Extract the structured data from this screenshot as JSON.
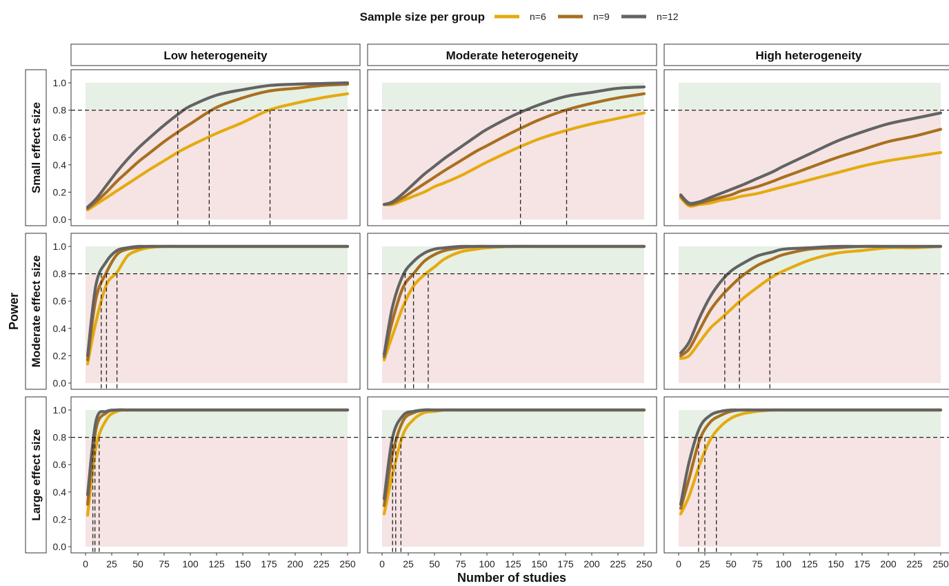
{
  "legend": {
    "title": "Sample size per group",
    "items": [
      {
        "label": "n=6",
        "color": "#E5AA10"
      },
      {
        "label": "n=9",
        "color": "#A96F1F"
      },
      {
        "label": "n=12",
        "color": "#636363"
      }
    ]
  },
  "columns": [
    "Low heterogeneity",
    "Moderate heterogeneity",
    "High heterogeneity"
  ],
  "rows": [
    "Small effect size",
    "Moderate effect size",
    "Large effect size"
  ],
  "axes": {
    "xlabel": "Number of studies",
    "ylabel": "Power",
    "xticks": [
      "0",
      "25",
      "50",
      "75",
      "100",
      "125",
      "150",
      "175",
      "200",
      "225",
      "250"
    ],
    "yticks": [
      "0.0",
      "0.2",
      "0.4",
      "0.6",
      "0.8",
      "1.0"
    ]
  },
  "colors": {
    "above_threshold_band": "#E6F0E4",
    "below_threshold_band": "#F5E4E3",
    "threshold_line": "#222222"
  },
  "chart_data": {
    "type": "line",
    "xlim": [
      0,
      250
    ],
    "ylim": [
      0,
      1
    ],
    "threshold": 0.8,
    "x": [
      2,
      10,
      20,
      30,
      40,
      50,
      60,
      75,
      90,
      100,
      125,
      150,
      175,
      200,
      225,
      250
    ],
    "panels": [
      {
        "row": "Small effect size",
        "column": "Low heterogeneity",
        "series": [
          {
            "name": "n=6",
            "crossing": 176,
            "values": [
              0.07,
              0.11,
              0.16,
              0.21,
              0.26,
              0.31,
              0.36,
              0.43,
              0.5,
              0.54,
              0.63,
              0.71,
              0.8,
              0.85,
              0.89,
              0.92
            ]
          },
          {
            "name": "n=9",
            "crossing": 118,
            "values": [
              0.08,
              0.13,
              0.2,
              0.28,
              0.35,
              0.42,
              0.48,
              0.57,
              0.65,
              0.7,
              0.82,
              0.89,
              0.94,
              0.96,
              0.98,
              0.99
            ]
          },
          {
            "name": "n=12",
            "crossing": 88,
            "values": [
              0.09,
              0.15,
              0.25,
              0.35,
              0.44,
              0.52,
              0.59,
              0.69,
              0.78,
              0.83,
              0.91,
              0.95,
              0.98,
              0.99,
              0.995,
              1.0
            ]
          }
        ]
      },
      {
        "row": "Small effect size",
        "column": "Moderate heterogeneity",
        "series": [
          {
            "name": "n=6",
            "crossing": null,
            "values": [
              0.11,
              0.11,
              0.14,
              0.17,
              0.2,
              0.24,
              0.27,
              0.32,
              0.38,
              0.42,
              0.51,
              0.59,
              0.65,
              0.7,
              0.74,
              0.78
            ]
          },
          {
            "name": "n=9",
            "crossing": 176,
            "values": [
              0.11,
              0.12,
              0.16,
              0.21,
              0.26,
              0.31,
              0.36,
              0.43,
              0.5,
              0.54,
              0.64,
              0.73,
              0.8,
              0.85,
              0.89,
              0.92
            ]
          },
          {
            "name": "n=12",
            "crossing": 132,
            "values": [
              0.11,
              0.13,
              0.19,
              0.26,
              0.33,
              0.39,
              0.45,
              0.53,
              0.61,
              0.66,
              0.76,
              0.84,
              0.9,
              0.93,
              0.96,
              0.97
            ]
          }
        ]
      },
      {
        "row": "Small effect size",
        "column": "High heterogeneity",
        "series": [
          {
            "name": "n=6",
            "crossing": null,
            "values": [
              0.16,
              0.1,
              0.11,
              0.12,
              0.14,
              0.15,
              0.17,
              0.19,
              0.22,
              0.24,
              0.29,
              0.34,
              0.39,
              0.43,
              0.46,
              0.49
            ]
          },
          {
            "name": "n=9",
            "crossing": null,
            "values": [
              0.17,
              0.11,
              0.12,
              0.14,
              0.16,
              0.18,
              0.21,
              0.24,
              0.28,
              0.31,
              0.38,
              0.45,
              0.51,
              0.57,
              0.61,
              0.66
            ]
          },
          {
            "name": "n=12",
            "crossing": null,
            "values": [
              0.18,
              0.12,
              0.13,
              0.16,
              0.19,
              0.22,
              0.25,
              0.3,
              0.35,
              0.39,
              0.48,
              0.57,
              0.64,
              0.7,
              0.74,
              0.78
            ]
          }
        ]
      },
      {
        "row": "Moderate effect size",
        "column": "Low heterogeneity",
        "series": [
          {
            "name": "n=6",
            "crossing": 30,
            "values": [
              0.14,
              0.45,
              0.72,
              0.81,
              0.93,
              0.97,
              0.99,
              1.0,
              1.0,
              1.0,
              1.0,
              1.0,
              1.0,
              1.0,
              1.0,
              1.0
            ]
          },
          {
            "name": "n=9",
            "crossing": 20,
            "values": [
              0.17,
              0.62,
              0.81,
              0.94,
              0.98,
              0.99,
              1.0,
              1.0,
              1.0,
              1.0,
              1.0,
              1.0,
              1.0,
              1.0,
              1.0,
              1.0
            ]
          },
          {
            "name": "n=12",
            "crossing": 15,
            "values": [
              0.2,
              0.72,
              0.89,
              0.97,
              0.99,
              1.0,
              1.0,
              1.0,
              1.0,
              1.0,
              1.0,
              1.0,
              1.0,
              1.0,
              1.0,
              1.0
            ]
          }
        ]
      },
      {
        "row": "Moderate effect size",
        "column": "Moderate heterogeneity",
        "series": [
          {
            "name": "n=6",
            "crossing": 44,
            "values": [
              0.17,
              0.35,
              0.56,
              0.71,
              0.79,
              0.85,
              0.91,
              0.96,
              0.98,
              0.99,
              1.0,
              1.0,
              1.0,
              1.0,
              1.0,
              1.0
            ]
          },
          {
            "name": "n=9",
            "crossing": 30,
            "values": [
              0.19,
              0.46,
              0.7,
              0.8,
              0.89,
              0.94,
              0.97,
              0.99,
              1.0,
              1.0,
              1.0,
              1.0,
              1.0,
              1.0,
              1.0,
              1.0
            ]
          },
          {
            "name": "n=12",
            "crossing": 22,
            "values": [
              0.21,
              0.56,
              0.79,
              0.89,
              0.95,
              0.98,
              0.99,
              1.0,
              1.0,
              1.0,
              1.0,
              1.0,
              1.0,
              1.0,
              1.0,
              1.0
            ]
          }
        ]
      },
      {
        "row": "Moderate effect size",
        "column": "High heterogeneity",
        "series": [
          {
            "name": "n=6",
            "crossing": 87,
            "values": [
              0.18,
              0.2,
              0.3,
              0.4,
              0.47,
              0.54,
              0.61,
              0.7,
              0.78,
              0.82,
              0.9,
              0.95,
              0.97,
              0.99,
              0.99,
              1.0
            ]
          },
          {
            "name": "n=9",
            "crossing": 58,
            "values": [
              0.2,
              0.25,
              0.39,
              0.53,
              0.63,
              0.71,
              0.78,
              0.86,
              0.91,
              0.94,
              0.98,
              0.99,
              1.0,
              1.0,
              1.0,
              1.0
            ]
          },
          {
            "name": "n=12",
            "crossing": 44,
            "values": [
              0.22,
              0.3,
              0.48,
              0.63,
              0.74,
              0.82,
              0.87,
              0.93,
              0.96,
              0.98,
              0.99,
              1.0,
              1.0,
              1.0,
              1.0,
              1.0
            ]
          }
        ]
      },
      {
        "row": "Large effect size",
        "column": "Low heterogeneity",
        "series": [
          {
            "name": "n=6",
            "crossing": 13,
            "values": [
              0.23,
              0.73,
              0.93,
              0.99,
              1.0,
              1.0,
              1.0,
              1.0,
              1.0,
              1.0,
              1.0,
              1.0,
              1.0,
              1.0,
              1.0,
              1.0
            ]
          },
          {
            "name": "n=9",
            "crossing": 9,
            "values": [
              0.31,
              0.86,
              0.98,
              1.0,
              1.0,
              1.0,
              1.0,
              1.0,
              1.0,
              1.0,
              1.0,
              1.0,
              1.0,
              1.0,
              1.0,
              1.0
            ]
          },
          {
            "name": "n=12",
            "crossing": 7,
            "values": [
              0.38,
              0.92,
              0.99,
              1.0,
              1.0,
              1.0,
              1.0,
              1.0,
              1.0,
              1.0,
              1.0,
              1.0,
              1.0,
              1.0,
              1.0,
              1.0
            ]
          }
        ]
      },
      {
        "row": "Large effect size",
        "column": "Moderate heterogeneity",
        "series": [
          {
            "name": "n=6",
            "crossing": 18,
            "values": [
              0.24,
              0.53,
              0.82,
              0.93,
              0.98,
              0.99,
              1.0,
              1.0,
              1.0,
              1.0,
              1.0,
              1.0,
              1.0,
              1.0,
              1.0,
              1.0
            ]
          },
          {
            "name": "n=9",
            "crossing": 13,
            "values": [
              0.3,
              0.68,
              0.92,
              0.98,
              1.0,
              1.0,
              1.0,
              1.0,
              1.0,
              1.0,
              1.0,
              1.0,
              1.0,
              1.0,
              1.0,
              1.0
            ]
          },
          {
            "name": "n=12",
            "crossing": 10,
            "values": [
              0.35,
              0.8,
              0.96,
              0.99,
              1.0,
              1.0,
              1.0,
              1.0,
              1.0,
              1.0,
              1.0,
              1.0,
              1.0,
              1.0,
              1.0,
              1.0
            ]
          }
        ]
      },
      {
        "row": "Large effect size",
        "column": "High heterogeneity",
        "series": [
          {
            "name": "n=6",
            "crossing": 36,
            "values": [
              0.24,
              0.37,
              0.6,
              0.78,
              0.88,
              0.94,
              0.97,
              0.99,
              1.0,
              1.0,
              1.0,
              1.0,
              1.0,
              1.0,
              1.0,
              1.0
            ]
          },
          {
            "name": "n=9",
            "crossing": 25,
            "values": [
              0.28,
              0.5,
              0.78,
              0.91,
              0.96,
              0.99,
              1.0,
              1.0,
              1.0,
              1.0,
              1.0,
              1.0,
              1.0,
              1.0,
              1.0,
              1.0
            ]
          },
          {
            "name": "n=12",
            "crossing": 19,
            "values": [
              0.31,
              0.62,
              0.87,
              0.96,
              0.99,
              1.0,
              1.0,
              1.0,
              1.0,
              1.0,
              1.0,
              1.0,
              1.0,
              1.0,
              1.0,
              1.0
            ]
          }
        ]
      }
    ]
  }
}
